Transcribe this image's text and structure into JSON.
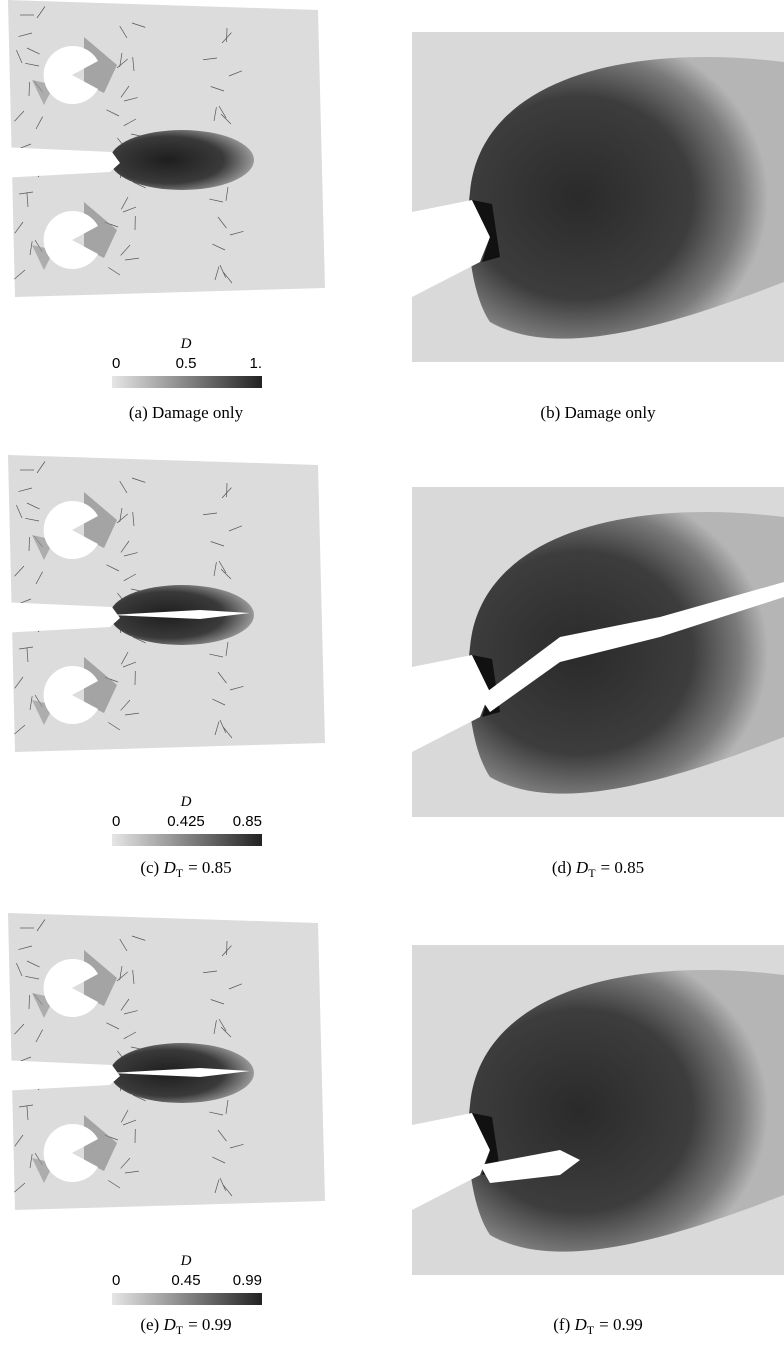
{
  "panels": [
    {
      "caption": {
        "label": "(a)",
        "text": "Damage only"
      },
      "colorbar": {
        "title": "D",
        "ticks": [
          "0",
          "0.5",
          "1."
        ]
      }
    },
    {
      "caption": {
        "label": "(b)",
        "text": "Damage only"
      }
    },
    {
      "caption": {
        "label": "(c)",
        "symbol": "D",
        "subscript": "T",
        "rest": "= 0.85"
      },
      "colorbar": {
        "title": "D",
        "ticks": [
          "0",
          "0.425",
          "0.85"
        ]
      }
    },
    {
      "caption": {
        "label": "(d)",
        "symbol": "D",
        "subscript": "T",
        "rest": "= 0.85"
      }
    },
    {
      "caption": {
        "label": "(e)",
        "symbol": "D",
        "subscript": "T",
        "rest": "= 0.99"
      },
      "colorbar": {
        "title": "D",
        "ticks": [
          "0",
          "0.45",
          "0.99"
        ]
      }
    },
    {
      "caption": {
        "label": "(f)",
        "symbol": "D",
        "subscript": "T",
        "rest": "= 0.99"
      }
    }
  ]
}
